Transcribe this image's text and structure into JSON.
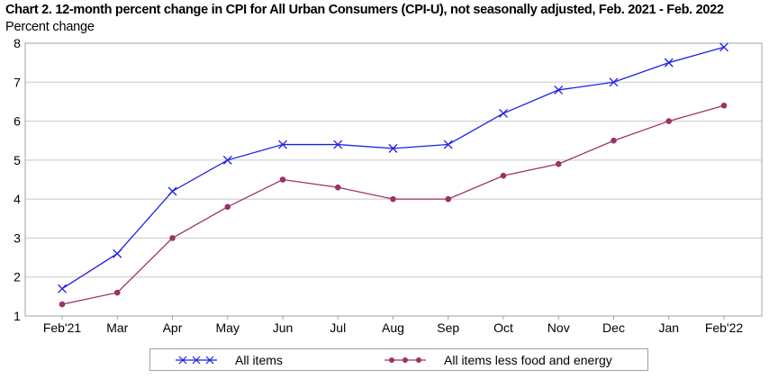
{
  "chart_data": {
    "type": "line",
    "title": "Chart 2. 12-month percent change in CPI for All Urban Consumers (CPI-U), not seasonally adjusted, Feb. 2021 - Feb. 2022",
    "xlabel": "",
    "ylabel": "Percent change",
    "categories": [
      "Feb'21",
      "Mar",
      "Apr",
      "May",
      "Jun",
      "Jul",
      "Aug",
      "Sep",
      "Oct",
      "Nov",
      "Dec",
      "Jan",
      "Feb'22"
    ],
    "ylim": [
      1,
      8
    ],
    "yticks": [
      1,
      2,
      3,
      4,
      5,
      6,
      7,
      8
    ],
    "grid": true,
    "legend_position": "bottom",
    "series": [
      {
        "name": "All items",
        "color": "#1f1fe6",
        "marker": "x",
        "values": [
          1.7,
          2.6,
          4.2,
          5.0,
          5.4,
          5.4,
          5.3,
          5.4,
          6.2,
          6.8,
          7.0,
          7.5,
          7.9
        ]
      },
      {
        "name": "All items less food and energy",
        "color": "#993366",
        "marker": "circle",
        "values": [
          1.3,
          1.6,
          3.0,
          3.8,
          4.5,
          4.3,
          4.0,
          4.0,
          4.6,
          4.9,
          5.5,
          6.0,
          6.4
        ]
      }
    ]
  }
}
